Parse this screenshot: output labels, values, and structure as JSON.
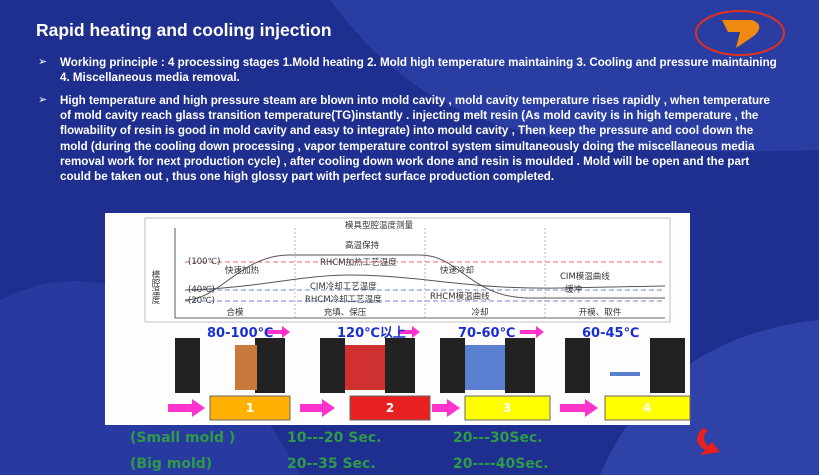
{
  "header": {
    "title": "Rapid heating and cooling injection"
  },
  "bullets": [
    "Working principle : 4 processing stages   1.Mold heating   2. Mold high temperature maintaining  3. Cooling and pressure maintaining  4. Miscellaneous media removal.",
    "High temperature and high pressure steam are blown into mold cavity , mold cavity temperature rises rapidly , when temperature of mold cavity reach glass transition temperature(TG)instantly . injecting melt resin (As mold cavity is in high temperature , the flowability of resin is good in mold cavity and easy to integrate) into mould cavity , Then keep the pressure and cool down the mold (during the cooling down processing , vapor temperature control system simultaneously  doing the miscellaneous media removal work for next production cycle) , after cooling down work done and resin is moulded . Mold will be open and the part  could be taken out , thus one high glossy part with perfect surface production completed."
  ],
  "diagram": {
    "title": "模具型腔温度测量",
    "y_label": "模腔温度",
    "labels": [
      "高温保持",
      "(100℃)",
      "快速加热",
      "RHCM加热工艺温度",
      "快速冷却",
      "CIM模温曲线",
      "(40℃)",
      "CIM冷却工艺温度",
      "缓冲",
      "(20℃)",
      "RHCM冷却工艺温度",
      "RHCM模温曲线"
    ],
    "phases": [
      "合模",
      "充填、保压",
      "冷却",
      "开模、取件"
    ],
    "temperatures": [
      "80-100℃",
      "120℃以上",
      "70-60℃",
      "60-45℃"
    ],
    "steps": [
      "1",
      "2",
      "3",
      "4"
    ]
  },
  "timing": [
    {
      "mold": "(Small mold )",
      "times": [
        "10---20 Sec.",
        "20---30Sec."
      ]
    },
    {
      "mold": "(Big mold)",
      "times": [
        "20--35 Sec.",
        "20----40Sec."
      ]
    }
  ]
}
